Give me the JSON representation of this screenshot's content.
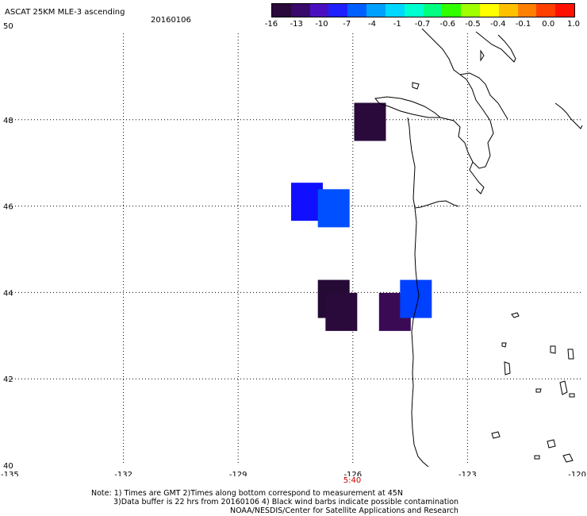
{
  "header": {
    "title": "ASCAT 25KM MLE-3 ascending",
    "date": "20160106"
  },
  "colorbar": {
    "colors": [
      "#2a0a3a",
      "#3a0a6a",
      "#4a10c0",
      "#2020ff",
      "#0060ff",
      "#00a0ff",
      "#00d8ff",
      "#00ffd0",
      "#00ff80",
      "#30ff00",
      "#a0ff00",
      "#ffff00",
      "#ffc000",
      "#ff8000",
      "#ff4000",
      "#ff1000"
    ],
    "labels": [
      "-16",
      "-13",
      "-10",
      "-7",
      "-4",
      "-1",
      "-0.7",
      "-0.6",
      "-0.5",
      "-0.4",
      "-0.1",
      "0.0",
      "1.0"
    ]
  },
  "axes": {
    "lon_ticks": [
      -135,
      -132,
      -129,
      -126,
      -123,
      -120
    ],
    "lon_labels": [
      "-135",
      "-132",
      "-129",
      "-126",
      "-123",
      "-120"
    ],
    "lat_ticks": [
      40,
      42,
      44,
      46,
      48,
      50
    ],
    "lat_labels": [
      "40",
      "42",
      "44",
      "46",
      "48",
      "50"
    ],
    "lon_range": [
      -135,
      -120
    ],
    "lat_range": [
      40,
      50
    ],
    "grid": "dotted"
  },
  "time_label": {
    "text": "5:40",
    "color": "#cc0000",
    "lon": -126
  },
  "cells": [
    {
      "lon": -125.55,
      "lat": 47.95,
      "color": "#2a0a3a"
    },
    {
      "lon": -127.2,
      "lat": 46.1,
      "color": "#1010ff"
    },
    {
      "lon": -126.5,
      "lat": 45.95,
      "color": "#0050ff"
    },
    {
      "lon": -126.5,
      "lat": 43.85,
      "color": "#250a35"
    },
    {
      "lon": -126.3,
      "lat": 43.55,
      "color": "#2a0a3a"
    },
    {
      "lon": -124.9,
      "lat": 43.55,
      "color": "#3a0a55"
    },
    {
      "lon": -124.35,
      "lat": 43.85,
      "color": "#0040ff"
    }
  ],
  "notes": {
    "line1": "Note: 1) Times are GMT 2)Times along bottom correspond to measurement at 45N",
    "line2": "3)Data buffer is 22 hrs from 20160106 4) Black wind barbs indicate possible contamination",
    "line3": "NOAA/NESDIS/Center for Satellite Applications and Research"
  }
}
